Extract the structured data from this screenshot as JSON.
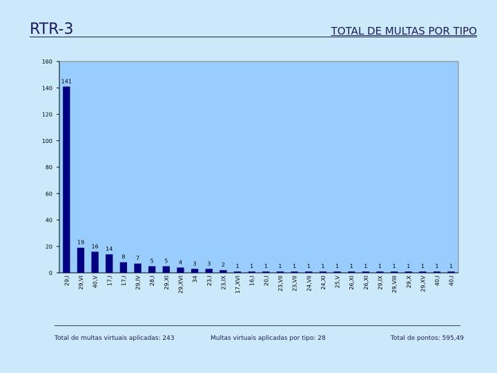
{
  "header": {
    "title": "RTR-3",
    "subtitle": "TOTAL DE MULTAS POR TIPO"
  },
  "colors": {
    "background": "#cce8fb",
    "plot_area": "#99ccff",
    "bar": "#000080",
    "text": "#1a1a5e"
  },
  "chart_data": {
    "type": "bar",
    "title": "TOTAL DE MULTAS POR TIPO",
    "xlabel": "",
    "ylabel": "",
    "ylim": [
      0,
      160
    ],
    "yticks": [
      0,
      20,
      40,
      60,
      80,
      100,
      120,
      140,
      160
    ],
    "grid": false,
    "categories": [
      "29,I",
      "29,VI",
      "40,V",
      "17,I",
      "17,I",
      "29,IV",
      "28,I",
      "29,XI",
      "29,XVI",
      "34",
      "23,I",
      "23,IX",
      "17,XVI",
      "16,I",
      "20,I",
      "23,VII",
      "23,VII",
      "24,VII",
      "24,XI",
      "25,V",
      "26,XI",
      "26,XI",
      "29,IX",
      "29,VIII",
      "29,X",
      "29,XV",
      "40,I",
      "40,I"
    ],
    "values": [
      141,
      19,
      16,
      14,
      8,
      7,
      5,
      5,
      4,
      3,
      3,
      2,
      1,
      1,
      1,
      1,
      1,
      1,
      1,
      1,
      1,
      1,
      1,
      1,
      1,
      1,
      1,
      1
    ]
  },
  "footer": {
    "total_virtual": "Total de multas virtuais aplicadas: 243",
    "by_type": "Multas virtuais aplicadas por tipo: 28",
    "total_points": "Total de pontos: 595,49"
  }
}
